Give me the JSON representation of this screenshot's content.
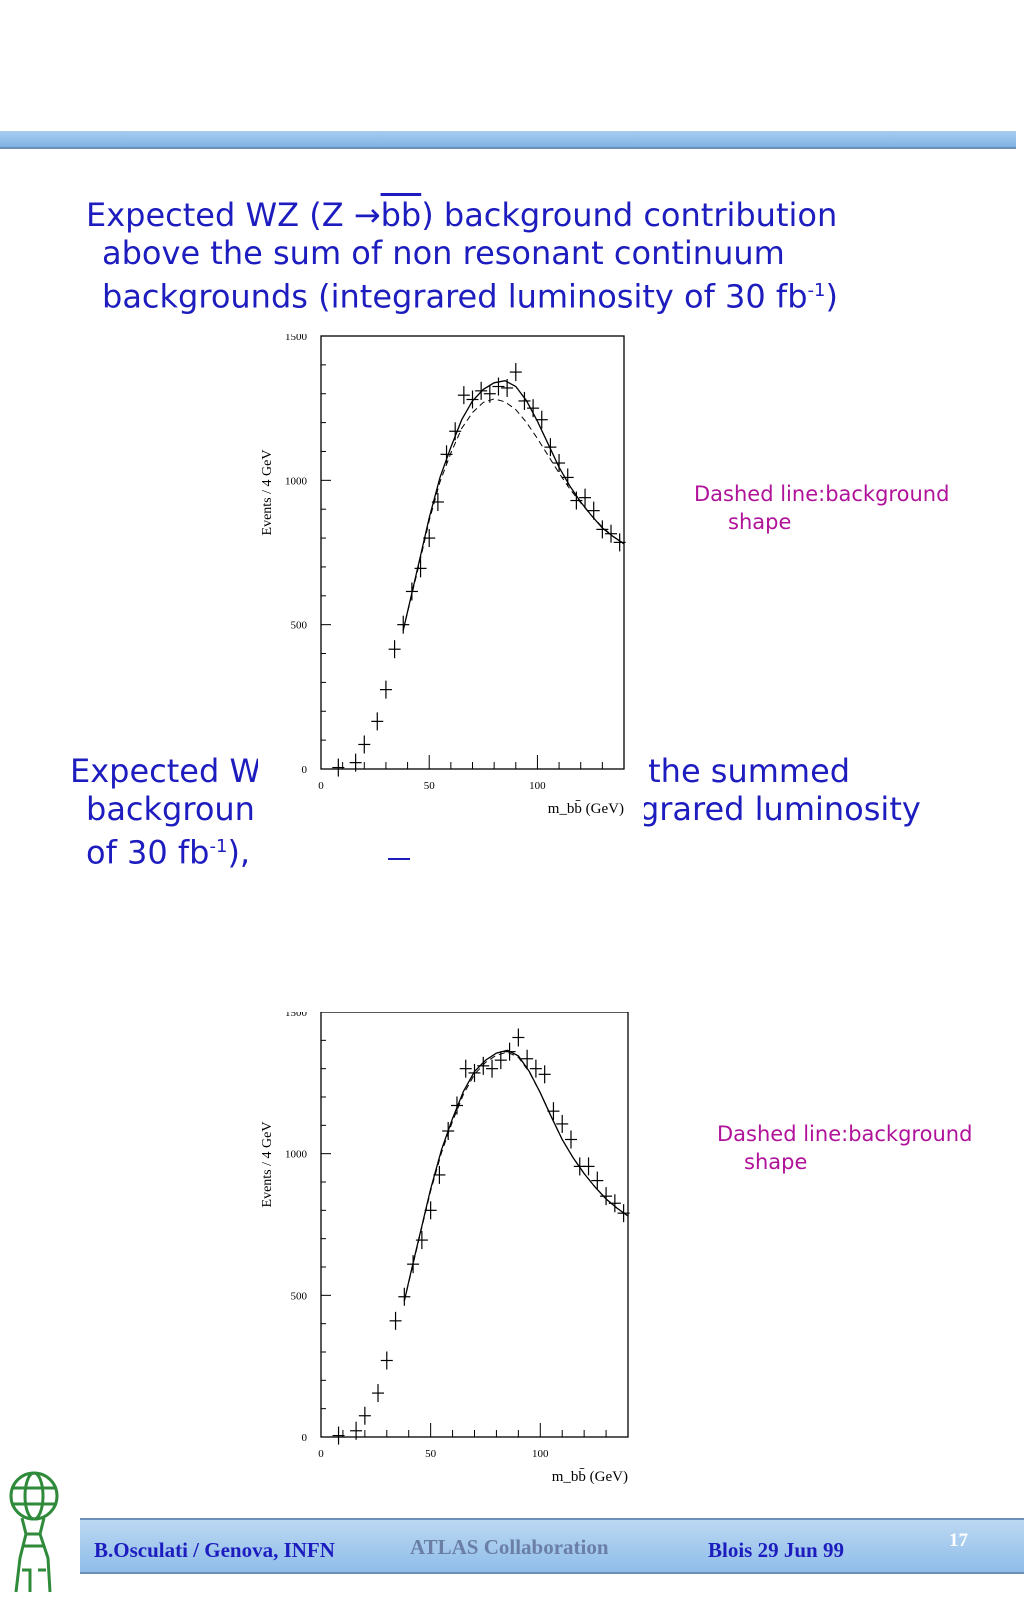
{
  "slide": {
    "heading1": {
      "line1_a": "Expected WZ  (Z ",
      "arrow": "→",
      "bb": "bb",
      "line1_b": ") background contribution",
      "line2": "above the sum of non resonant continuum",
      "line3_a": "backgrounds (integrared luminosity of 30 fb",
      "sup": "-1",
      "line3_b": ")"
    },
    "heading2": {
      "line1_a": "Expected W",
      "line1_b": "the summed",
      "line2_a": "backgroun",
      "line2_b": "grared luminosity",
      "line3_a": "of 30 fb",
      "sup": "-1",
      "line3_b": "),"
    },
    "side_note": {
      "line1": "Dashed line:background",
      "line2": "shape"
    },
    "footer": {
      "author": "B.Osculati  / Genova, INFN",
      "collaboration": "ATLAS Collaboration",
      "venue": "Blois 29 Jun 99",
      "page": "17"
    }
  },
  "colors": {
    "heading": "#1d1dbf",
    "note": "#b0129a",
    "bar": "#8fbde9",
    "footer_author": "#1d1dbf",
    "footer_collab": "#6b7fa6",
    "footer_page": "#ffffff"
  },
  "chart_data": [
    {
      "type": "scatter",
      "ylabel": "Events / 4 GeV",
      "xlabel": "m_bb̄ (GeV)",
      "xlim": [
        0,
        140
      ],
      "ylim": [
        0,
        1500
      ],
      "x_ticks": [
        "0",
        "50",
        "100"
      ],
      "y_ticks": [
        "0",
        "500",
        "1000",
        "1500"
      ],
      "points": [
        [
          8,
          5
        ],
        [
          16,
          22
        ],
        [
          20,
          85
        ],
        [
          26,
          165
        ],
        [
          30,
          275
        ],
        [
          34,
          415
        ],
        [
          38,
          500
        ],
        [
          42,
          615
        ],
        [
          46,
          695
        ],
        [
          50,
          800
        ],
        [
          54,
          925
        ],
        [
          58,
          1090
        ],
        [
          62,
          1170
        ],
        [
          66,
          1295
        ],
        [
          70,
          1280
        ],
        [
          74,
          1310
        ],
        [
          78,
          1300
        ],
        [
          82,
          1325
        ],
        [
          86,
          1320
        ],
        [
          90,
          1375
        ],
        [
          94,
          1275
        ],
        [
          98,
          1250
        ],
        [
          102,
          1210
        ],
        [
          106,
          1115
        ],
        [
          110,
          1060
        ],
        [
          114,
          1010
        ],
        [
          118,
          930
        ],
        [
          122,
          940
        ],
        [
          126,
          895
        ],
        [
          130,
          830
        ],
        [
          134,
          815
        ],
        [
          138,
          785
        ]
      ],
      "fit_total": [
        [
          38,
          480
        ],
        [
          42,
          610
        ],
        [
          46,
          740
        ],
        [
          50,
          870
        ],
        [
          55,
          1010
        ],
        [
          60,
          1115
        ],
        [
          65,
          1210
        ],
        [
          70,
          1275
        ],
        [
          75,
          1315
        ],
        [
          80,
          1338
        ],
        [
          85,
          1345
        ],
        [
          90,
          1325
        ],
        [
          95,
          1275
        ],
        [
          100,
          1205
        ],
        [
          105,
          1125
        ],
        [
          110,
          1045
        ],
        [
          115,
          980
        ],
        [
          120,
          925
        ],
        [
          125,
          878
        ],
        [
          130,
          835
        ],
        [
          135,
          805
        ],
        [
          140,
          780
        ]
      ],
      "fit_background": [
        [
          38,
          480
        ],
        [
          42,
          605
        ],
        [
          46,
          730
        ],
        [
          50,
          860
        ],
        [
          55,
          995
        ],
        [
          60,
          1095
        ],
        [
          65,
          1180
        ],
        [
          70,
          1235
        ],
        [
          75,
          1270
        ],
        [
          80,
          1282
        ],
        [
          85,
          1272
        ],
        [
          90,
          1245
        ],
        [
          95,
          1200
        ],
        [
          100,
          1145
        ],
        [
          105,
          1085
        ],
        [
          110,
          1025
        ],
        [
          115,
          970
        ],
        [
          120,
          922
        ],
        [
          125,
          878
        ],
        [
          130,
          838
        ],
        [
          135,
          805
        ],
        [
          140,
          780
        ]
      ]
    },
    {
      "type": "scatter",
      "ylabel": "Events / 4 GeV",
      "xlabel": "m_bb̄ (GeV)",
      "xlim": [
        0,
        140
      ],
      "ylim": [
        0,
        1500
      ],
      "x_ticks": [
        "0",
        "50",
        "100"
      ],
      "y_ticks": [
        "0",
        "500",
        "1000",
        "1500"
      ],
      "points": [
        [
          8,
          5
        ],
        [
          16,
          22
        ],
        [
          20,
          75
        ],
        [
          26,
          155
        ],
        [
          30,
          270
        ],
        [
          34,
          410
        ],
        [
          38,
          495
        ],
        [
          42,
          610
        ],
        [
          46,
          695
        ],
        [
          50,
          800
        ],
        [
          54,
          925
        ],
        [
          58,
          1080
        ],
        [
          62,
          1170
        ],
        [
          66,
          1300
        ],
        [
          70,
          1285
        ],
        [
          74,
          1310
        ],
        [
          78,
          1300
        ],
        [
          82,
          1330
        ],
        [
          86,
          1360
        ],
        [
          90,
          1410
        ],
        [
          94,
          1335
        ],
        [
          98,
          1300
        ],
        [
          102,
          1280
        ],
        [
          106,
          1150
        ],
        [
          110,
          1105
        ],
        [
          114,
          1050
        ],
        [
          118,
          955
        ],
        [
          122,
          955
        ],
        [
          126,
          905
        ],
        [
          130,
          850
        ],
        [
          134,
          825
        ],
        [
          138,
          790
        ]
      ],
      "fit_total": [
        [
          38,
          480
        ],
        [
          42,
          615
        ],
        [
          46,
          745
        ],
        [
          50,
          875
        ],
        [
          55,
          1015
        ],
        [
          60,
          1125
        ],
        [
          65,
          1220
        ],
        [
          70,
          1290
        ],
        [
          75,
          1330
        ],
        [
          80,
          1355
        ],
        [
          85,
          1365
        ],
        [
          90,
          1345
        ],
        [
          95,
          1290
        ],
        [
          100,
          1215
        ],
        [
          105,
          1130
        ],
        [
          110,
          1050
        ],
        [
          115,
          985
        ],
        [
          120,
          930
        ],
        [
          125,
          882
        ],
        [
          130,
          840
        ],
        [
          135,
          808
        ],
        [
          140,
          780
        ]
      ],
      "fit_background": [
        [
          38,
          480
        ],
        [
          42,
          610
        ],
        [
          46,
          740
        ],
        [
          50,
          868
        ],
        [
          55,
          1005
        ],
        [
          60,
          1115
        ],
        [
          65,
          1210
        ],
        [
          70,
          1280
        ],
        [
          75,
          1322
        ],
        [
          80,
          1348
        ],
        [
          85,
          1358
        ],
        [
          90,
          1340
        ],
        [
          95,
          1288
        ],
        [
          100,
          1215
        ],
        [
          105,
          1130
        ],
        [
          110,
          1050
        ],
        [
          115,
          985
        ],
        [
          120,
          930
        ],
        [
          125,
          882
        ],
        [
          130,
          840
        ],
        [
          135,
          808
        ],
        [
          140,
          780
        ]
      ]
    }
  ]
}
